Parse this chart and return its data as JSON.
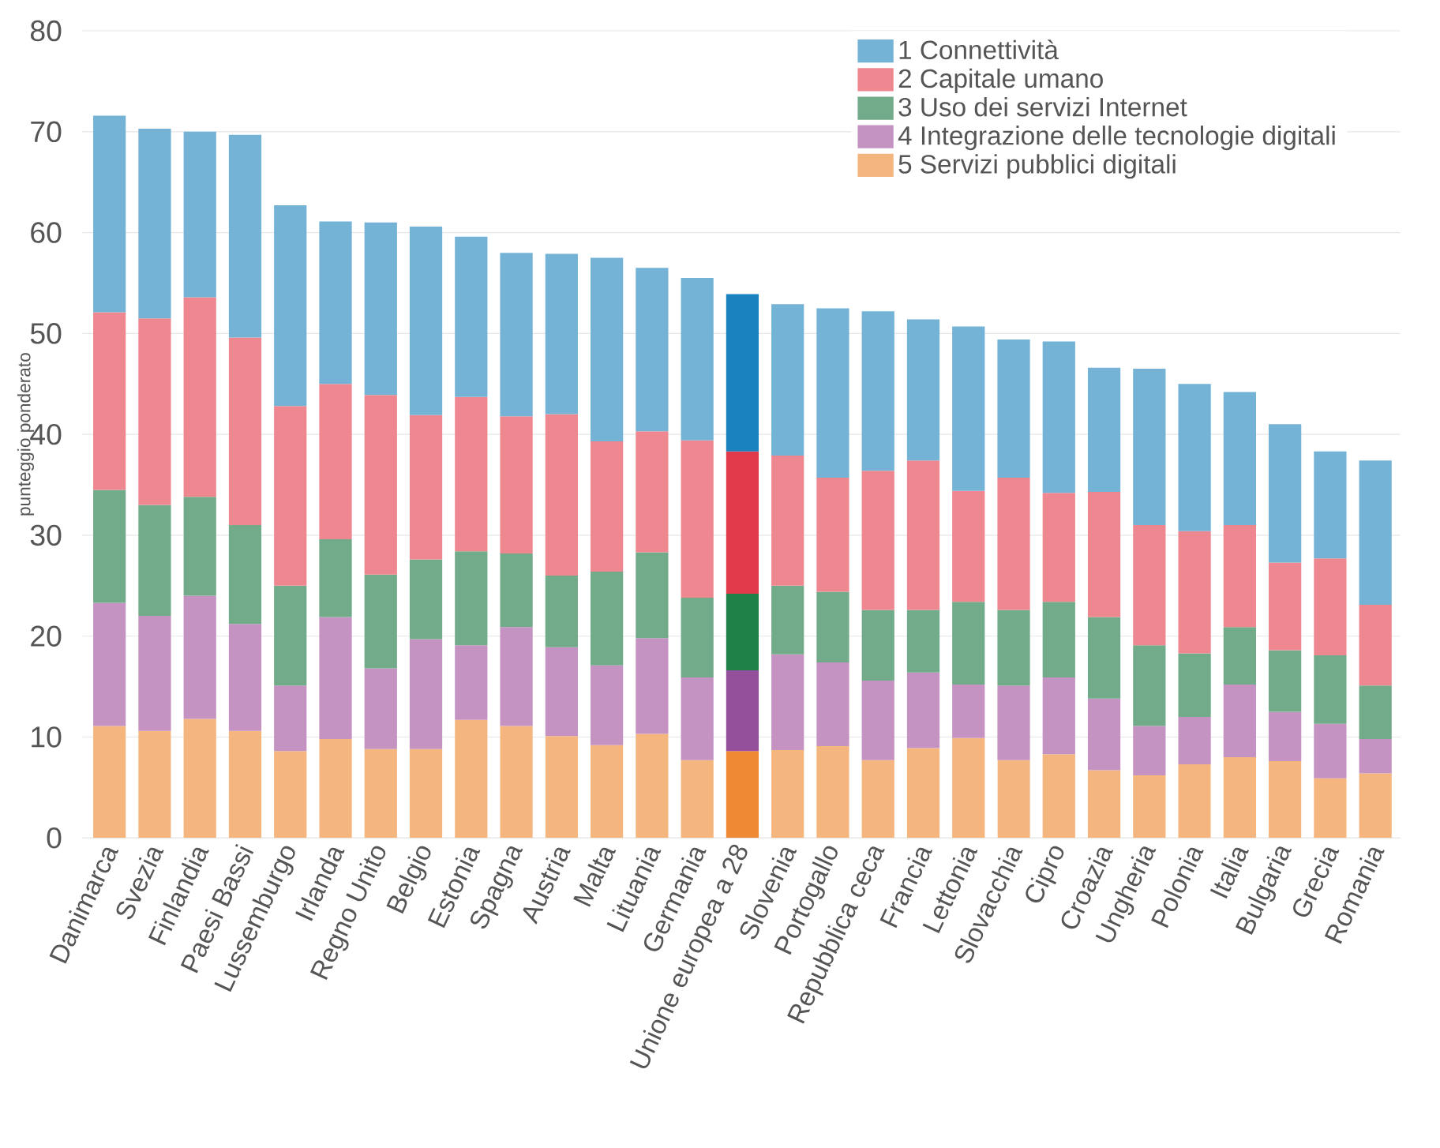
{
  "chart_data": {
    "type": "bar",
    "stacked": true,
    "ylabel": "punteggio ponderato",
    "ylim": [
      0,
      80
    ],
    "yticks": [
      0,
      10,
      20,
      30,
      40,
      50,
      60,
      70,
      80
    ],
    "grid": "y",
    "legend": "top right",
    "categories": [
      "Danimarca",
      "Svezia",
      "Finlandia",
      "Paesi Bassi",
      "Lussemburgo",
      "Irlanda",
      "Regno Unito",
      "Belgio",
      "Estonia",
      "Spagna",
      "Austria",
      "Malta",
      "Lituania",
      "Germania",
      "Unione europea a 28",
      "Slovenia",
      "Portogallo",
      "Repubblica ceca",
      "Francia",
      "Lettonia",
      "Slovacchia",
      "Cipro",
      "Croazia",
      "Ungheria",
      "Polonia",
      "Italia",
      "Bulgaria",
      "Grecia",
      "Romania"
    ],
    "series": [
      {
        "name": "5 Servizi pubblici digitali",
        "color": "#f5b57f",
        "colors": [
          "#f5b57f",
          "#f5b57f",
          "#f5b57f",
          "#f5b57f",
          "#f5b57f",
          "#f5b57f",
          "#f5b57f",
          "#f5b57f",
          "#f5b57f",
          "#f5b57f",
          "#f5b57f",
          "#f5b57f",
          "#f5b57f",
          "#f5b57f",
          "#ee8a33",
          "#f5b57f",
          "#f5b57f",
          "#f5b57f",
          "#f5b57f",
          "#f5b57f",
          "#f5b57f",
          "#f5b57f",
          "#f5b57f",
          "#f5b57f",
          "#f5b57f",
          "#f5b57f",
          "#f5b57f",
          "#f5b57f",
          "#f5b57f"
        ],
        "values": [
          11.1,
          10.6,
          11.8,
          10.6,
          8.6,
          9.8,
          8.8,
          8.8,
          11.7,
          11.1,
          10.1,
          9.2,
          10.3,
          7.7,
          8.6,
          8.7,
          9.1,
          7.7,
          8.9,
          9.9,
          7.7,
          8.3,
          6.7,
          6.2,
          7.3,
          8.0,
          7.6,
          5.9,
          6.4
        ]
      },
      {
        "name": "4 Integrazione delle tecnologie digitali",
        "color": "#c493c2",
        "colors": [
          "#c493c2",
          "#c493c2",
          "#c493c2",
          "#c493c2",
          "#c493c2",
          "#c493c2",
          "#c493c2",
          "#c493c2",
          "#c493c2",
          "#c493c2",
          "#c493c2",
          "#c493c2",
          "#c493c2",
          "#c493c2",
          "#94509a",
          "#c493c2",
          "#c493c2",
          "#c493c2",
          "#c493c2",
          "#c493c2",
          "#c493c2",
          "#c493c2",
          "#c493c2",
          "#c493c2",
          "#c493c2",
          "#c493c2",
          "#c493c2",
          "#c493c2",
          "#c493c2"
        ],
        "values": [
          12.2,
          11.4,
          12.2,
          10.6,
          6.5,
          12.1,
          8.0,
          10.9,
          7.4,
          9.8,
          8.8,
          7.9,
          9.5,
          8.2,
          8.0,
          9.5,
          8.3,
          7.9,
          7.5,
          5.3,
          7.4,
          7.6,
          7.1,
          4.9,
          4.7,
          7.2,
          4.9,
          5.4,
          3.4
        ]
      },
      {
        "name": "3 Uso dei servizi Internet",
        "color": "#72ab8a",
        "colors": [
          "#72ab8a",
          "#72ab8a",
          "#72ab8a",
          "#72ab8a",
          "#72ab8a",
          "#72ab8a",
          "#72ab8a",
          "#72ab8a",
          "#72ab8a",
          "#72ab8a",
          "#72ab8a",
          "#72ab8a",
          "#72ab8a",
          "#72ab8a",
          "#1f8048",
          "#72ab8a",
          "#72ab8a",
          "#72ab8a",
          "#72ab8a",
          "#72ab8a",
          "#72ab8a",
          "#72ab8a",
          "#72ab8a",
          "#72ab8a",
          "#72ab8a",
          "#72ab8a",
          "#72ab8a",
          "#72ab8a",
          "#72ab8a"
        ],
        "values": [
          11.2,
          11.0,
          9.8,
          9.8,
          9.9,
          7.7,
          9.3,
          7.9,
          9.3,
          7.3,
          7.1,
          9.3,
          8.5,
          7.9,
          7.6,
          6.8,
          7.0,
          7.0,
          6.2,
          8.2,
          7.5,
          7.5,
          8.1,
          8.0,
          6.3,
          5.7,
          6.1,
          6.8,
          5.3
        ]
      },
      {
        "name": "2 Capitale umano",
        "color": "#ef8790",
        "colors": [
          "#ef8790",
          "#ef8790",
          "#ef8790",
          "#ef8790",
          "#ef8790",
          "#ef8790",
          "#ef8790",
          "#ef8790",
          "#ef8790",
          "#ef8790",
          "#ef8790",
          "#ef8790",
          "#ef8790",
          "#ef8790",
          "#e23a4b",
          "#ef8790",
          "#ef8790",
          "#ef8790",
          "#ef8790",
          "#ef8790",
          "#ef8790",
          "#ef8790",
          "#ef8790",
          "#ef8790",
          "#ef8790",
          "#ef8790",
          "#ef8790",
          "#ef8790",
          "#ef8790"
        ],
        "values": [
          17.6,
          18.5,
          19.8,
          18.6,
          17.8,
          15.4,
          17.8,
          14.3,
          15.3,
          13.6,
          16.0,
          12.9,
          12.0,
          15.6,
          14.1,
          12.9,
          11.3,
          13.8,
          14.8,
          11.0,
          13.1,
          10.8,
          12.4,
          11.9,
          12.1,
          10.1,
          8.7,
          9.6,
          8.0
        ]
      },
      {
        "name": "1 Connettività",
        "color": "#74b3d6",
        "colors": [
          "#74b3d6",
          "#74b3d6",
          "#74b3d6",
          "#74b3d6",
          "#74b3d6",
          "#74b3d6",
          "#74b3d6",
          "#74b3d6",
          "#74b3d6",
          "#74b3d6",
          "#74b3d6",
          "#74b3d6",
          "#74b3d6",
          "#74b3d6",
          "#1a82be",
          "#74b3d6",
          "#74b3d6",
          "#74b3d6",
          "#74b3d6",
          "#74b3d6",
          "#74b3d6",
          "#74b3d6",
          "#74b3d6",
          "#74b3d6",
          "#74b3d6",
          "#74b3d6",
          "#74b3d6",
          "#74b3d6",
          "#74b3d6"
        ],
        "values": [
          19.5,
          18.8,
          16.4,
          20.1,
          19.9,
          16.1,
          17.1,
          18.7,
          15.9,
          16.2,
          15.9,
          18.2,
          16.2,
          16.1,
          15.6,
          15.0,
          16.8,
          15.8,
          14.0,
          16.3,
          13.7,
          15.0,
          12.3,
          15.5,
          14.6,
          13.2,
          13.7,
          10.6,
          14.3
        ]
      }
    ]
  }
}
